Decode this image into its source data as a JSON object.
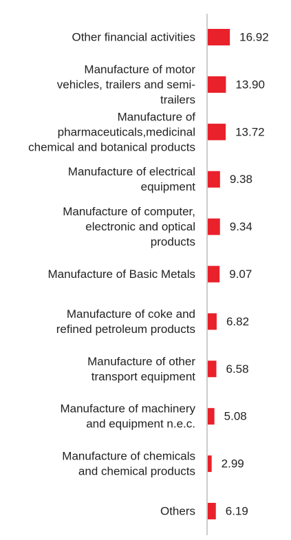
{
  "chart_data": {
    "type": "bar",
    "orientation": "horizontal",
    "categories": [
      [
        "Other financial activities"
      ],
      [
        "Manufacture of motor",
        "vehicles, trailers and semi-",
        "trailers"
      ],
      [
        "Manufacture of",
        "pharmaceuticals,medicinal",
        "chemical and botanical products"
      ],
      [
        "Manufacture of electrical",
        "equipment"
      ],
      [
        "Manufacture of computer,",
        "electronic and optical",
        "products"
      ],
      [
        "Manufacture of Basic Metals"
      ],
      [
        "Manufacture of coke and",
        "refined petroleum products"
      ],
      [
        "Manufacture of other",
        "transport equipment"
      ],
      [
        "Manufacture of machinery",
        "and equipment n.e.c."
      ],
      [
        "Manufacture of chemicals",
        "and chemical products"
      ],
      [
        "Others"
      ]
    ],
    "values": [
      16.92,
      13.9,
      13.72,
      9.38,
      9.34,
      9.07,
      6.82,
      6.58,
      5.08,
      2.99,
      6.19
    ],
    "value_labels": [
      "16.92",
      "13.90",
      "13.72",
      "9.38",
      "9.34",
      "9.07",
      "6.82",
      "6.58",
      "5.08",
      "2.99",
      "6.19"
    ],
    "title": "",
    "xlabel": "",
    "ylabel": "",
    "xlim": [
      0,
      100
    ],
    "grid": false,
    "legend": "none",
    "bar_color": "#e8212b",
    "axis_color": "#cccccc",
    "text_color": "#222222"
  }
}
